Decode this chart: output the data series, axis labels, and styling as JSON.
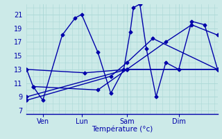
{
  "background_color": "#cceae8",
  "grid_color": "#aad8d6",
  "line_color": "#0000aa",
  "x_tick_labels": [
    "Ven",
    "Lun",
    "Sam",
    "Dim"
  ],
  "x_tick_positions": [
    25,
    85,
    155,
    235
  ],
  "xlabel": "Température (°c)",
  "ylim": [
    6.5,
    22.5
  ],
  "yticks": [
    7,
    9,
    11,
    13,
    15,
    17,
    19,
    21
  ],
  "xlim": [
    0,
    295
  ],
  "series": [
    {
      "x": [
        0,
        10,
        25,
        55,
        75,
        85,
        110,
        130,
        150,
        160,
        165,
        175,
        185,
        200,
        215,
        235,
        255,
        275,
        295
      ],
      "y": [
        13,
        10.5,
        8.5,
        18.0,
        20.5,
        21.0,
        15.5,
        9.5,
        13.0,
        18.5,
        22.0,
        22.5,
        16.0,
        9.0,
        14.0,
        13.0,
        20.0,
        19.5,
        13.0
      ]
    },
    {
      "x": [
        0,
        90,
        155,
        295
      ],
      "y": [
        13,
        12.5,
        13.0,
        13.0
      ]
    },
    {
      "x": [
        0,
        155,
        295
      ],
      "y": [
        9.0,
        13.0,
        13.0
      ]
    },
    {
      "x": [
        0,
        130,
        155,
        195,
        295
      ],
      "y": [
        8.5,
        12.0,
        14.0,
        17.5,
        13.0
      ]
    },
    {
      "x": [
        10,
        110,
        155,
        215,
        255,
        295
      ],
      "y": [
        10.5,
        10.0,
        13.0,
        17.0,
        19.5,
        18.0
      ]
    }
  ]
}
